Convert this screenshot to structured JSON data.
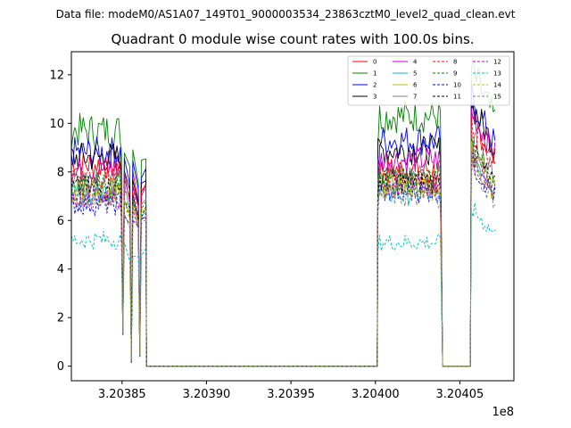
{
  "figure": {
    "suptitle": "Data file: modeM0/AS1A07_149T01_9000003534_23863cztM0_level2_quad_clean.evt"
  },
  "chart_data": {
    "type": "line",
    "title": "Quadrant 0 module wise count rates with 100.0s bins.",
    "xlabel": "",
    "ylabel": "",
    "x_offset_label": "1e8",
    "xlim": [
      3.20382,
      3.204082
    ],
    "ylim": [
      -0.6,
      12.95
    ],
    "x_ticks": [
      3.20385,
      3.2039,
      3.20395,
      3.204,
      3.20405
    ],
    "x_tick_labels": [
      "3.20385",
      "3.20390",
      "3.20395",
      "3.20400",
      "3.20405"
    ],
    "y_ticks": [
      0,
      2,
      4,
      6,
      8,
      10,
      12
    ],
    "y_tick_labels": [
      "0",
      "2",
      "4",
      "6",
      "8",
      "10",
      "12"
    ],
    "grid": false,
    "legend_position": "top-right",
    "legend_columns": 4,
    "x": [
      3.20382,
      3.2038245,
      3.204002,
      3.2040398,
      3.2040568,
      3.204071
    ],
    "gaps": [
      {
        "x_start": 3.2038645,
        "x_end": 3.2040011
      },
      {
        "x_start": 3.2040398,
        "x_end": 3.2040562
      }
    ],
    "dips": [
      {
        "x": 3.2038505,
        "y": 1.3
      },
      {
        "x": 3.2038555,
        "y": 0.15
      },
      {
        "x": 3.2038605,
        "y": 0.4
      }
    ],
    "series": [
      {
        "name": "0",
        "color": "#ff0000",
        "dashed": false,
        "segment_levels": [
          8.3,
          8.4,
          8.1,
          10.2
        ]
      },
      {
        "name": "1",
        "color": "#008000",
        "dashed": false,
        "segment_levels": [
          9.7,
          9.3,
          10.3,
          12.2
        ]
      },
      {
        "name": "2",
        "color": "#0000ff",
        "dashed": false,
        "segment_levels": [
          8.8,
          7.0,
          9.3,
          11.0
        ]
      },
      {
        "name": "3",
        "color": "#000000",
        "dashed": false,
        "segment_levels": [
          8.6,
          8.8,
          8.9,
          10.8
        ]
      },
      {
        "name": "4",
        "color": "#c000c0",
        "dashed": false,
        "segment_levels": [
          8.1,
          8.3,
          8.5,
          10.5
        ]
      },
      {
        "name": "5",
        "color": "#00bfbf",
        "dashed": false,
        "segment_levels": [
          7.3,
          7.0,
          7.1,
          8.8
        ]
      },
      {
        "name": "6",
        "color": "#bfbf00",
        "dashed": false,
        "segment_levels": [
          7.1,
          7.3,
          7.5,
          8.6
        ]
      },
      {
        "name": "7",
        "color": "#808080",
        "dashed": false,
        "segment_levels": [
          7.6,
          7.6,
          7.8,
          9.4
        ]
      },
      {
        "name": "8",
        "color": "#ff0000",
        "dashed": true,
        "segment_levels": [
          7.9,
          7.9,
          7.6,
          9.8
        ]
      },
      {
        "name": "9",
        "color": "#008000",
        "dashed": true,
        "segment_levels": [
          7.4,
          7.5,
          7.7,
          9.1
        ]
      },
      {
        "name": "10",
        "color": "#0000ff",
        "dashed": true,
        "segment_levels": [
          6.7,
          6.6,
          7.2,
          8.4
        ]
      },
      {
        "name": "11",
        "color": "#000000",
        "dashed": true,
        "segment_levels": [
          7.3,
          7.2,
          7.6,
          8.9
        ]
      },
      {
        "name": "12",
        "color": "#c000c0",
        "dashed": true,
        "segment_levels": [
          7.0,
          6.9,
          7.4,
          8.7
        ]
      },
      {
        "name": "13",
        "color": "#00bfbf",
        "dashed": true,
        "segment_levels": [
          5.2,
          4.8,
          5.1,
          6.5
        ]
      },
      {
        "name": "14",
        "color": "#bfbf00",
        "dashed": true,
        "segment_levels": [
          7.2,
          7.1,
          7.3,
          8.9
        ]
      },
      {
        "name": "15",
        "color": "#808080",
        "dashed": true,
        "segment_levels": [
          6.9,
          6.7,
          7.0,
          8.2
        ]
      }
    ]
  }
}
